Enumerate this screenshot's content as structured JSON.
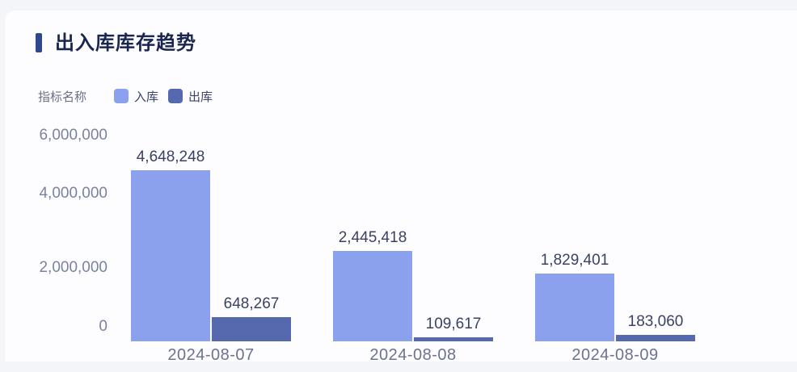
{
  "header": {
    "title": "出入库库存趋势",
    "accent_color": "#2e4a8d",
    "title_color": "#1a2550"
  },
  "legend": {
    "caption": "指标名称",
    "caption_color": "#697086",
    "label_color": "#3a4268"
  },
  "axis_colors": {
    "y_tick_color": "#7a81a1",
    "x_label_color": "#6b7290",
    "value_label_color": "#3a4164"
  },
  "chart_data": {
    "type": "bar",
    "title": "出入库库存趋势",
    "categories": [
      "2024-08-07",
      "2024-08-08",
      "2024-08-09"
    ],
    "series": [
      {
        "name": "入库",
        "color": "#8ba1ee",
        "values": [
          4648248,
          2445418,
          1829401
        ]
      },
      {
        "name": "出库",
        "color": "#5668ae",
        "values": [
          648267,
          109617,
          183060
        ]
      }
    ],
    "value_labels": [
      [
        "4,648,248",
        "2,445,418",
        "1,829,401"
      ],
      [
        "648,267",
        "109,617",
        "183,060"
      ]
    ],
    "y_ticks": [
      "6,000,000",
      "4,000,000",
      "2,000,000",
      "0"
    ],
    "ylim": [
      0,
      6000000
    ],
    "xlabel": "",
    "ylabel": "",
    "grid": false,
    "legend_position": "top-left"
  }
}
